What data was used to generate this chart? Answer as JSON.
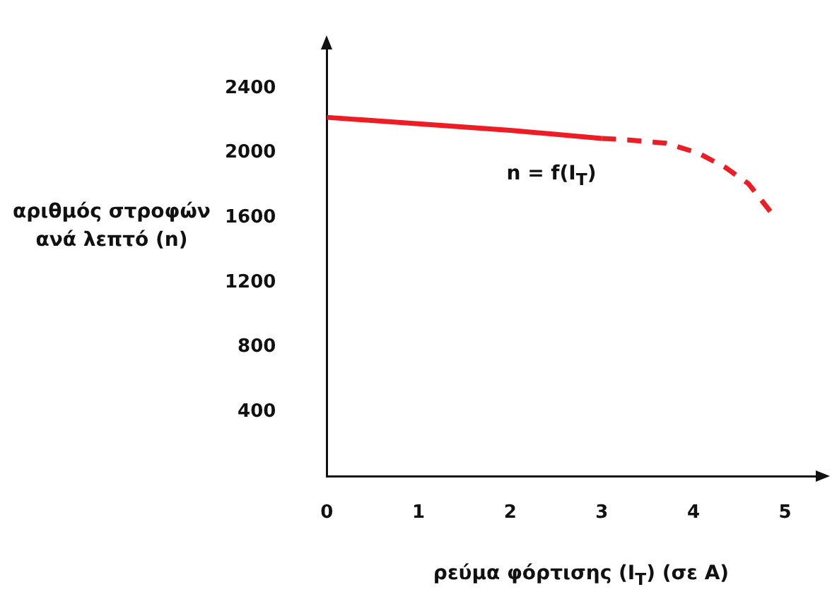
{
  "chart_data": {
    "type": "line",
    "xlabel": "ρεύμα φόρτισης (I$_{T}$) (σε A)",
    "ylabel": "αριθμός στροφών ανά λεπτό (n)",
    "annotations": [
      "n = f(I$_{T}$)"
    ],
    "series": [
      {
        "color": "#ee1c25",
        "x": [
          0,
          1,
          2,
          3
        ],
        "values": [
          2220,
          2180,
          2140,
          2090
        ],
        "line_style": "solid"
      },
      {
        "color": "#ee1c25",
        "x": [
          3,
          3.3,
          3.7,
          4.05,
          4.35,
          4.6,
          4.85
        ],
        "values": [
          2090,
          2080,
          2060,
          2000,
          1910,
          1810,
          1630
        ],
        "line_style": "dashed"
      }
    ],
    "xlim": [
      0,
      5.35
    ],
    "xticks": [
      0,
      1,
      2,
      3,
      4,
      5
    ],
    "ylim": [
      0,
      2650
    ],
    "yticks": [
      400,
      800,
      1200,
      1600,
      2000,
      2400
    ],
    "grid": false,
    "legend": false,
    "marker": "none"
  }
}
